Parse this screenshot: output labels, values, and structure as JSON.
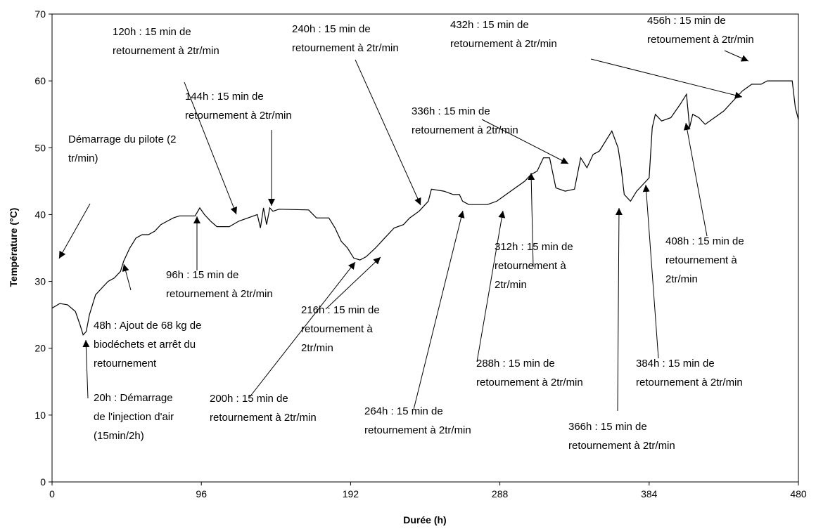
{
  "chart_data": {
    "type": "line",
    "xlabel": "Durée (h)",
    "ylabel": "Température (°C)",
    "xlim": [
      0,
      480
    ],
    "ylim": [
      0,
      70
    ],
    "xticks": [
      0,
      96,
      192,
      288,
      384,
      480
    ],
    "yticks": [
      0,
      10,
      20,
      30,
      40,
      50,
      60,
      70
    ],
    "color": "#000000",
    "x": [
      0,
      5,
      10,
      15,
      18,
      20,
      22,
      24,
      28,
      32,
      36,
      40,
      44,
      46,
      50,
      54,
      58,
      62,
      66,
      70,
      74,
      78,
      82,
      92,
      95,
      98,
      102,
      106,
      114,
      120,
      126,
      132,
      134,
      136,
      138,
      140,
      142,
      146,
      165,
      170,
      178,
      182,
      186,
      190,
      194,
      198,
      202,
      208,
      214,
      220,
      226,
      230,
      236,
      240,
      242,
      244,
      252,
      258,
      262,
      264,
      268,
      280,
      286,
      292,
      298,
      304,
      308,
      312,
      316,
      320,
      324,
      330,
      336,
      340,
      344,
      348,
      352,
      356,
      360,
      364,
      366,
      368,
      372,
      376,
      380,
      384,
      386,
      388,
      392,
      398,
      404,
      408,
      410,
      412,
      416,
      420,
      426,
      432,
      436,
      440,
      444,
      450,
      456,
      460,
      476,
      478,
      480
    ],
    "y": [
      26,
      26.7,
      26.5,
      25.5,
      23.5,
      22,
      22.5,
      25,
      28,
      29,
      30,
      30.5,
      31.5,
      33,
      35,
      36.5,
      37,
      37,
      37.5,
      38.5,
      39,
      39.5,
      39.8,
      39.8,
      41,
      40,
      39,
      38.2,
      38.2,
      39,
      39.5,
      40,
      38,
      41,
      38.5,
      41,
      40.5,
      40.8,
      40.7,
      39.5,
      39.5,
      38,
      36,
      35,
      33.5,
      33.2,
      33.7,
      35,
      36.5,
      38,
      38.5,
      39.5,
      40.5,
      41.5,
      42,
      43.8,
      43.5,
      43,
      43,
      42,
      41.5,
      41.5,
      42,
      43,
      44,
      45,
      46,
      46.5,
      48.5,
      48.5,
      44,
      43.5,
      43.8,
      48.5,
      47,
      49,
      49.5,
      51,
      52.5,
      50,
      47,
      43,
      42,
      43.5,
      44.5,
      45.5,
      53,
      55,
      54,
      54.5,
      56.5,
      58,
      53,
      55,
      54.5,
      53.5,
      54.5,
      55.5,
      56.5,
      57.5,
      58.5,
      59.5,
      59.5,
      60,
      60,
      56,
      54.2
    ],
    "annotations": [
      {
        "lines": [
          "Démarrage du pilote (2",
          "tr/min)"
        ]
      },
      {
        "lines": [
          "20h : Démarrage",
          "de l'injection d'air",
          "(15min/2h)"
        ]
      },
      {
        "lines": [
          "48h : Ajout de 68 kg de",
          "biodéchets et arrêt du",
          "retournement"
        ]
      },
      {
        "lines": [
          "96h : 15 min de",
          "retournement à 2tr/min"
        ]
      },
      {
        "lines": [
          "120h : 15 min de",
          "retournement à 2tr/min"
        ]
      },
      {
        "lines": [
          "144h : 15 min de",
          "retournement à 2tr/min"
        ]
      },
      {
        "lines": [
          "200h : 15 min de",
          "retournement à 2tr/min"
        ]
      },
      {
        "lines": [
          "216h : 15 min de",
          "retournement à",
          "2tr/min"
        ]
      },
      {
        "lines": [
          "240h : 15 min de",
          "retournement à 2tr/min"
        ]
      },
      {
        "lines": [
          "264h : 15 min de",
          "retournement à 2tr/min"
        ]
      },
      {
        "lines": [
          "288h : 15 min de",
          "retournement à 2tr/min"
        ]
      },
      {
        "lines": [
          "312h : 15 min de",
          "retournement à",
          "2tr/min"
        ]
      },
      {
        "lines": [
          "336h : 15 min de",
          "retournement à 2tr/min"
        ]
      },
      {
        "lines": [
          "366h : 15 min de",
          "retournement à 2tr/min"
        ]
      },
      {
        "lines": [
          "384h : 15 min de",
          "retournement à 2tr/min"
        ]
      },
      {
        "lines": [
          "408h : 15 min de",
          "retournement à",
          "2tr/min"
        ]
      },
      {
        "lines": [
          "432h : 15 min de",
          "retournement à 2tr/min"
        ]
      },
      {
        "lines": [
          "456h : 15 min de",
          "retournement à 2tr/min"
        ]
      }
    ]
  }
}
